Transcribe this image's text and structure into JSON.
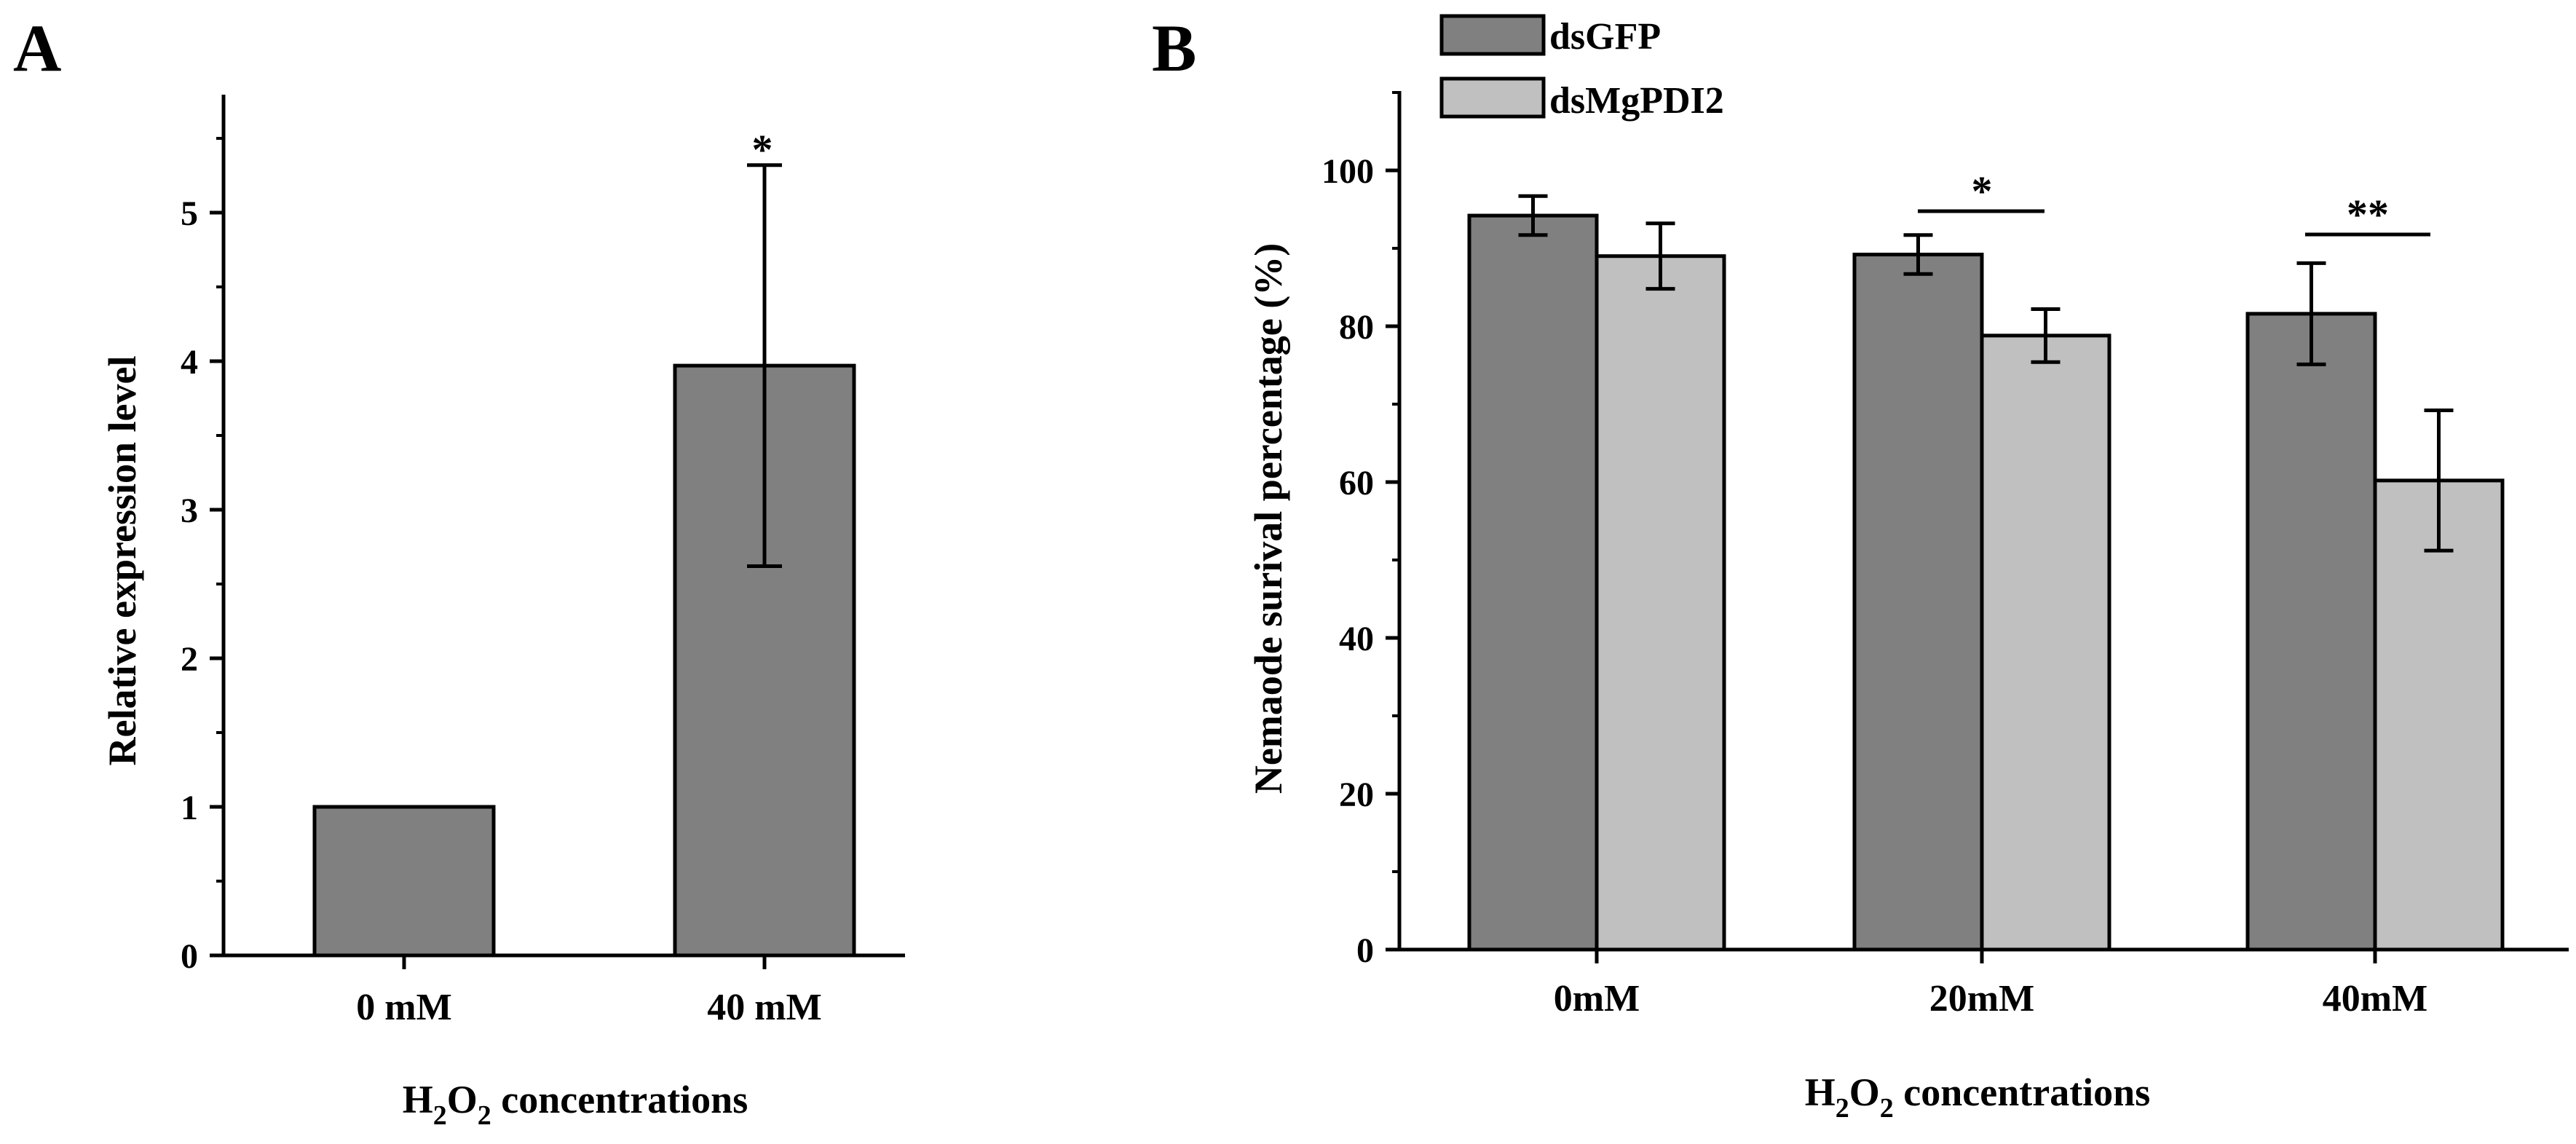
{
  "colors": {
    "dark_bar": "#808080",
    "light_bar": "#c0c0c0",
    "stroke": "#000000"
  },
  "chart_data": [
    {
      "panel": "A",
      "type": "bar",
      "categories": [
        "0 mM",
        "40 mM"
      ],
      "values": [
        1.0,
        3.97
      ],
      "errors": [
        0,
        1.35
      ],
      "significance": [
        "",
        "*"
      ],
      "xlabel": "H2O2 concentrations",
      "xlabel_parts": {
        "pre": "H",
        "sub1": "2",
        "mid": "O",
        "sub2": "2",
        "post": " concentrations"
      },
      "ylabel": "Relative expression level",
      "ylim": [
        0,
        5.75
      ],
      "yticks": [
        "0",
        "1",
        "2",
        "3",
        "4",
        "5"
      ]
    },
    {
      "panel": "B",
      "type": "bar",
      "categories": [
        "0mM",
        "20mM",
        "40mM"
      ],
      "series": [
        {
          "name": "dsGFP",
          "values": [
            94.2,
            89.2,
            81.6
          ],
          "errors": [
            2.5,
            2.5,
            6.5
          ]
        },
        {
          "name": "dsMgPDI2",
          "values": [
            89.0,
            78.8,
            60.2
          ],
          "errors": [
            4.2,
            3.4,
            9.0
          ]
        }
      ],
      "significance": [
        {
          "category": "20mM",
          "label": "*"
        },
        {
          "category": "40mM",
          "label": "**"
        }
      ],
      "xlabel": "H2O2 concentrations",
      "xlabel_parts": {
        "pre": "H",
        "sub1": "2",
        "mid": "O",
        "sub2": "2",
        "post": " concentrations"
      },
      "ylabel": "Nemaode surival percentage (%)",
      "ylim": [
        0,
        110
      ],
      "yticks": [
        "0",
        "20",
        "40",
        "60",
        "80",
        "100"
      ],
      "legend_position": "top-left"
    }
  ]
}
